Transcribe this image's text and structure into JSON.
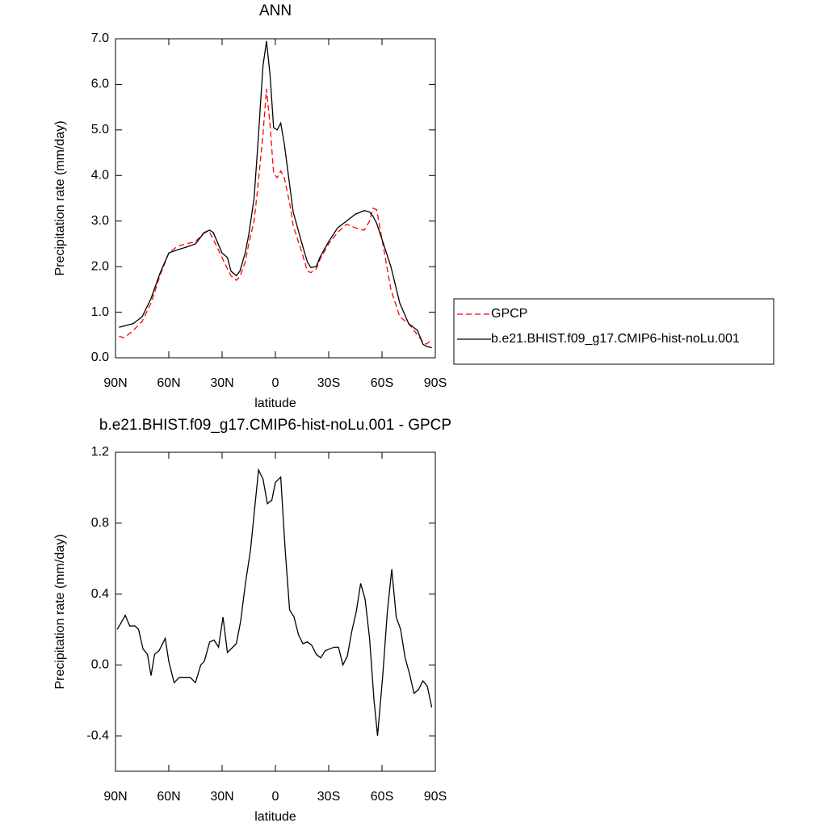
{
  "chart_data": [
    {
      "type": "line",
      "title": "ANN",
      "xlabel": "latitude",
      "ylabel": "Precipitation rate (mm/day)",
      "x": [
        88,
        85,
        80,
        75,
        70,
        65,
        60,
        55,
        50,
        45,
        40,
        37,
        35,
        30,
        27,
        25,
        22,
        20,
        17,
        15,
        12,
        10,
        7,
        5,
        3,
        1,
        -1,
        -3,
        -5,
        -8,
        -10,
        -15,
        -18,
        -20,
        -23,
        -25,
        -30,
        -35,
        -40,
        -45,
        -50,
        -53,
        -55,
        -57,
        -60,
        -65,
        -70,
        -75,
        -80,
        -83,
        -85,
        -88
      ],
      "series": [
        {
          "name": "GPCP",
          "color": "#ff0000",
          "linestyle": "dashed",
          "values": [
            0.47,
            0.44,
            0.6,
            0.8,
            1.2,
            1.8,
            2.3,
            2.45,
            2.5,
            2.55,
            2.75,
            2.75,
            2.6,
            2.2,
            1.95,
            1.8,
            1.7,
            1.78,
            2.1,
            2.5,
            3.0,
            3.7,
            4.9,
            5.9,
            5.1,
            4.05,
            3.95,
            4.1,
            3.95,
            3.4,
            2.9,
            2.3,
            1.9,
            1.87,
            1.95,
            2.15,
            2.5,
            2.75,
            2.93,
            2.85,
            2.8,
            3.0,
            3.28,
            3.25,
            2.6,
            1.5,
            0.9,
            0.75,
            0.5,
            0.35,
            0.3,
            0.4
          ]
        },
        {
          "name": "b.e21.BHIST.f09_g17.CMIP6-hist-noLu.001",
          "color": "#000000",
          "linestyle": "solid",
          "values": [
            0.67,
            0.7,
            0.75,
            0.9,
            1.3,
            1.85,
            2.3,
            2.37,
            2.43,
            2.5,
            2.75,
            2.8,
            2.75,
            2.3,
            2.2,
            1.9,
            1.8,
            1.9,
            2.3,
            2.7,
            3.5,
            4.6,
            6.4,
            6.95,
            6.2,
            5.05,
            5.0,
            5.15,
            4.7,
            3.8,
            3.2,
            2.5,
            2.1,
            1.98,
            2.0,
            2.2,
            2.55,
            2.85,
            3.0,
            3.15,
            3.23,
            3.2,
            3.1,
            2.95,
            2.6,
            2.0,
            1.2,
            0.75,
            0.6,
            0.3,
            0.25,
            0.22
          ]
        }
      ],
      "xlim": [
        90,
        -90
      ],
      "xticks": [
        {
          "value": 90,
          "label": "90N"
        },
        {
          "value": 60,
          "label": "60N"
        },
        {
          "value": 30,
          "label": "30N"
        },
        0,
        {
          "value": -30,
          "label": "30S"
        },
        {
          "value": -60,
          "label": "60S"
        },
        {
          "value": -90,
          "label": "90S"
        }
      ],
      "ylim": [
        0,
        7
      ],
      "yticks": [
        {
          "value": 0,
          "label": "0.0"
        },
        {
          "value": 1,
          "label": "1.0"
        },
        {
          "value": 2,
          "label": "2.0"
        },
        {
          "value": 3,
          "label": "3.0"
        },
        {
          "value": 4,
          "label": "4.0"
        },
        {
          "value": 5,
          "label": "5.0"
        },
        {
          "value": 6,
          "label": "6.0"
        },
        {
          "value": 7,
          "label": "7.0"
        }
      ],
      "legend": "right"
    },
    {
      "type": "line",
      "title": "b.e21.BHIST.f09_g17.CMIP6-hist-noLu.001 - GPCP",
      "xlabel": "latitude",
      "ylabel": "Precipitation rate (mm/day)",
      "x": [
        89,
        84.5,
        82,
        79,
        77,
        74.5,
        72,
        70,
        68,
        65.5,
        62,
        60,
        57,
        54,
        48,
        45,
        42,
        40,
        37,
        34.5,
        32,
        29.5,
        27,
        22,
        19.5,
        17,
        14,
        12,
        9.5,
        7,
        4.5,
        2,
        0,
        -3,
        -5.5,
        -8,
        -10.5,
        -13,
        -15.5,
        -18,
        -20.5,
        -23,
        -25.5,
        -28,
        -30.5,
        -33,
        -35.5,
        -38,
        -40.5,
        -43,
        -45.5,
        -48,
        -50.5,
        -53,
        -55.5,
        -57.5,
        -60.5,
        -63,
        -65.5,
        -68,
        -70.5,
        -73,
        -75.5,
        -78,
        -80.5,
        -83,
        -85.5,
        -88
      ],
      "values": [
        0.2,
        0.28,
        0.22,
        0.22,
        0.2,
        0.09,
        0.06,
        -0.06,
        0.06,
        0.08,
        0.15,
        0.02,
        -0.1,
        -0.07,
        -0.07,
        -0.1,
        0.0,
        0.02,
        0.13,
        0.14,
        0.1,
        0.27,
        0.07,
        0.12,
        0.25,
        0.45,
        0.65,
        0.85,
        1.1,
        1.05,
        0.91,
        0.93,
        1.03,
        1.06,
        0.65,
        0.31,
        0.27,
        0.17,
        0.12,
        0.13,
        0.11,
        0.06,
        0.04,
        0.08,
        0.09,
        0.1,
        0.1,
        0.0,
        0.05,
        0.19,
        0.3,
        0.46,
        0.37,
        0.15,
        -0.2,
        -0.4,
        -0.05,
        0.3,
        0.54,
        0.27,
        0.2,
        0.04,
        -0.05,
        -0.16,
        -0.14,
        -0.09,
        -0.12,
        -0.24
      ],
      "color": "#000000",
      "xlim": [
        90,
        -90
      ],
      "xticks": [
        {
          "value": 90,
          "label": "90N"
        },
        {
          "value": 60,
          "label": "60N"
        },
        {
          "value": 30,
          "label": "30N"
        },
        0,
        {
          "value": -30,
          "label": "30S"
        },
        {
          "value": -60,
          "label": "60S"
        },
        {
          "value": -90,
          "label": "90S"
        }
      ],
      "ylim": [
        -0.6,
        1.2
      ],
      "yticks": [
        -0.4,
        {
          "value": 0,
          "label": "0.0"
        },
        0.4,
        0.8,
        1.2
      ]
    }
  ]
}
